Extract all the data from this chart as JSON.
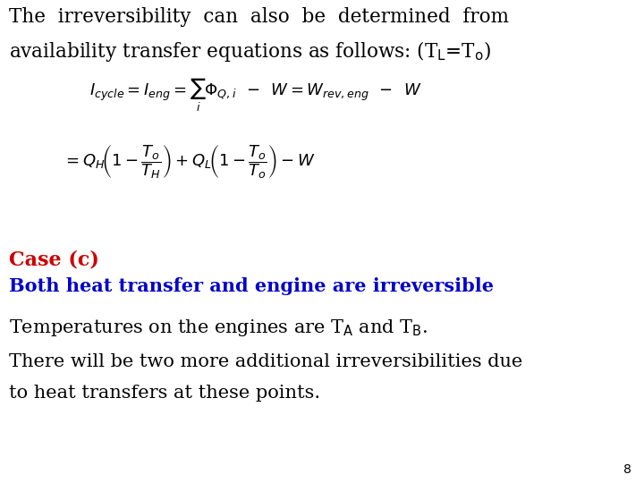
{
  "background_color": "#ffffff",
  "text_color": "#000000",
  "red_color": "#cc0000",
  "blue_color": "#0000cc",
  "header_line1": "The  irreversibility  can  also  be  determined  from",
  "header_line2": "availability transfer equations as follows: (T$_{\\rm L}$=T$_{\\rm o}$)",
  "eq1": "$I_{cycle} = I_{eng} = \\sum_i \\Phi_{Q,i}\\,\\,-\\,\\, W = W_{rev,eng}\\,\\,-\\,\\, W$",
  "eq2": "$= Q_H\\!\\left(1 - \\dfrac{T_o}{T_H}\\right) + Q_L\\!\\left(1 - \\dfrac{T_o}{T_o}\\right) - W$",
  "case_text": "Case (c)",
  "bold_text": "Both heat transfer and engine are irreversible",
  "line3": "Temperatures on the engines are T$_{\\rm A}$ and T$_{\\rm B}$.",
  "line4a": "There will be two more additional irreversibilities due",
  "line4b": "to heat transfers at these points.",
  "page_number": "8",
  "header_fontsize": 15.5,
  "eq_fontsize": 13,
  "case_fontsize": 16,
  "bold_fontsize": 15,
  "body_fontsize": 15,
  "page_fontsize": 10
}
